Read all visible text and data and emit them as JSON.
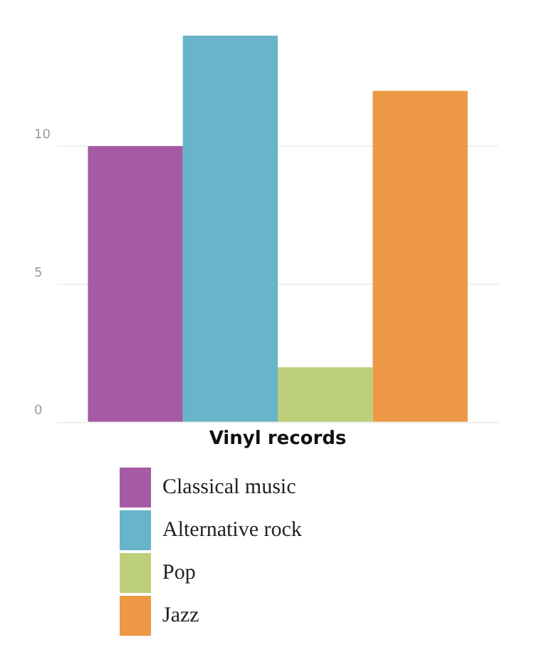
{
  "chart_data": {
    "type": "bar",
    "categories": [
      "Vinyl records"
    ],
    "series": [
      {
        "name": "Classical music",
        "color": "#a55ba3",
        "values": [
          10
        ]
      },
      {
        "name": "Alternative rock",
        "color": "#68b4c8",
        "values": [
          14
        ]
      },
      {
        "name": "Pop",
        "color": "#bdcf7a",
        "values": [
          2
        ]
      },
      {
        "name": "Jazz",
        "color": "#ec9844",
        "values": [
          12
        ]
      }
    ],
    "ylim": [
      0,
      14
    ],
    "yticks": [
      0,
      5,
      10
    ],
    "grid": "y",
    "legend": "bottom"
  }
}
